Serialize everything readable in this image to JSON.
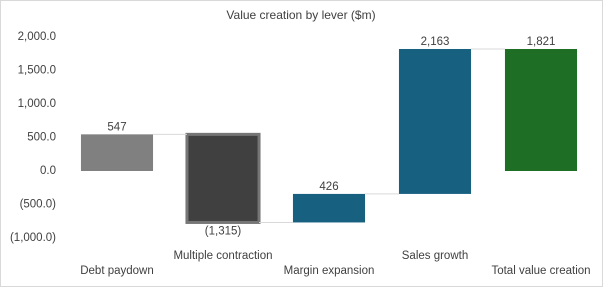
{
  "chart_data": {
    "type": "waterfall",
    "title": "Value creation by lever ($m)",
    "categories": [
      "Debt paydown",
      "Multiple contraction",
      "Margin expansion",
      "Sales growth",
      "Total value creation"
    ],
    "values": [
      547,
      -1315,
      426,
      2163,
      1821
    ],
    "value_labels": [
      "547",
      "(1,315)",
      "426",
      "2,163",
      "1,821"
    ],
    "is_total": [
      false,
      false,
      false,
      false,
      true
    ],
    "colors": [
      "#808080",
      "#404040",
      "#17607f",
      "#17607f",
      "#1e6e26"
    ],
    "edge_colors": [
      null,
      "#767676",
      null,
      null,
      null
    ],
    "ylim": [
      -1000,
      2000
    ],
    "yticks": [
      {
        "value": -1000,
        "label": "(1,000.0)"
      },
      {
        "value": -500,
        "label": "(500.0)"
      },
      {
        "value": 0,
        "label": "0.0"
      },
      {
        "value": 500,
        "label": "500.0"
      },
      {
        "value": 1000,
        "label": "1,000.0"
      },
      {
        "value": 1500,
        "label": "1,500.0"
      },
      {
        "value": 2000,
        "label": "2,000.0"
      }
    ],
    "grid": false
  }
}
